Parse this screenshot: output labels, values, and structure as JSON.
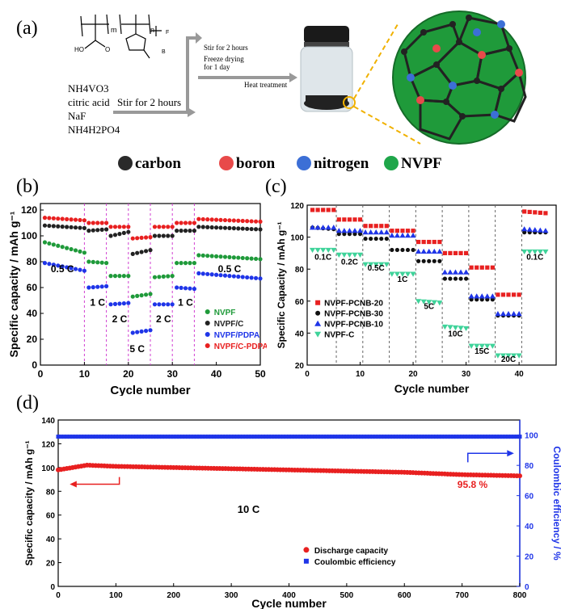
{
  "panel_labels": {
    "a": "(a)",
    "b": "(b)",
    "c": "(c)",
    "d": "(d)"
  },
  "schematic": {
    "reagents": [
      "NH4VO3",
      "citric acid",
      "NaF",
      "NH4H2PO4"
    ],
    "step1": "Stir for 2 hours",
    "step2a": "Stir for 2 hours",
    "step2b": "Freeze drying",
    "step2c": "for 1 day",
    "step3": "Heat treatment",
    "polymer_m": "m",
    "polymer_n": "n",
    "polymer_ho": "HO",
    "polymer_o": "O",
    "polymer_f": "F",
    "polymer_b": "B",
    "legend": [
      {
        "label": "carbon",
        "color": "#2a2a2a"
      },
      {
        "label": "boron",
        "color": "#e84a4a"
      },
      {
        "label": "nitrogen",
        "color": "#3c6fd6"
      },
      {
        "label": "NVPF",
        "color": "#1fa64a"
      }
    ]
  },
  "chart_data": [
    {
      "id": "b",
      "type": "scatter",
      "xlabel": "Cycle number",
      "ylabel": "Specific capacity / mAh g⁻¹",
      "xlim": [
        0,
        50
      ],
      "ylim": [
        0,
        125
      ],
      "xticks": [
        0,
        10,
        20,
        30,
        40,
        50
      ],
      "yticks": [
        0,
        20,
        40,
        60,
        80,
        100,
        120
      ],
      "dividers": [
        10,
        15,
        20,
        25,
        30,
        35
      ],
      "annotations": [
        "0.5 C",
        "1 C",
        "2 C",
        "5 C",
        "2 C",
        "1 C",
        "0.5 C"
      ],
      "series": [
        {
          "name": "NVPF",
          "color": "#1f9a3a",
          "segments": [
            [
              1,
              95,
              10,
              87
            ],
            [
              11,
              80,
              15,
              79
            ],
            [
              16,
              69,
              20,
              69
            ],
            [
              21,
              53,
              25,
              55
            ],
            [
              26,
              68,
              30,
              69
            ],
            [
              31,
              79,
              35,
              79
            ],
            [
              36,
              85,
              50,
              82
            ]
          ]
        },
        {
          "name": "NVPF/C",
          "color": "#222222",
          "segments": [
            [
              1,
              108,
              10,
              106
            ],
            [
              11,
              104,
              15,
              105
            ],
            [
              16,
              100,
              20,
              103
            ],
            [
              21,
              86,
              25,
              89
            ],
            [
              26,
              100,
              30,
              100
            ],
            [
              31,
              104,
              35,
              104
            ],
            [
              36,
              107,
              50,
              105
            ]
          ]
        },
        {
          "name": "NVPF/PDPA",
          "color": "#1f35e8",
          "segments": [
            [
              1,
              79,
              10,
              73
            ],
            [
              11,
              60,
              15,
              61
            ],
            [
              16,
              47,
              20,
              48
            ],
            [
              21,
              25,
              25,
              27
            ],
            [
              26,
              47,
              30,
              47
            ],
            [
              31,
              60,
              35,
              59
            ],
            [
              36,
              71,
              50,
              67
            ]
          ]
        },
        {
          "name": "NVPF/C-PDPA",
          "color": "#e82020",
          "segments": [
            [
              1,
              114,
              10,
              112
            ],
            [
              11,
              110,
              15,
              110
            ],
            [
              16,
              107,
              20,
              107
            ],
            [
              21,
              98,
              25,
              99
            ],
            [
              26,
              107,
              30,
              107
            ],
            [
              31,
              110,
              35,
              110
            ],
            [
              36,
              113,
              50,
              111
            ]
          ]
        }
      ]
    },
    {
      "id": "c",
      "type": "scatter",
      "xlabel": "Cycle number",
      "ylabel": "Specific Capacity / mAh g⁻¹",
      "xlim": [
        0,
        47
      ],
      "ylim": [
        20,
        120
      ],
      "xticks": [
        0,
        10,
        20,
        30,
        40
      ],
      "yticks": [
        20,
        40,
        60,
        80,
        100,
        120
      ],
      "dividers": [
        5.5,
        10.5,
        15.5,
        20.5,
        25.5,
        30.5,
        35.5,
        40.5
      ],
      "annotations": [
        "0.1C",
        "0.2C",
        "0.5C",
        "1C",
        "5C",
        "10C",
        "15C",
        "20C",
        "0.1C"
      ],
      "series": [
        {
          "name": "NVPF-PCNB-20",
          "color": "#e82020",
          "marker": "square",
          "segments": [
            [
              1,
              117,
              5,
              117
            ],
            [
              6,
              111,
              10,
              111
            ],
            [
              11,
              107,
              15,
              107
            ],
            [
              16,
              104,
              20,
              104
            ],
            [
              21,
              97,
              25,
              97
            ],
            [
              26,
              90,
              30,
              90
            ],
            [
              31,
              81,
              35,
              81
            ],
            [
              36,
              64,
              40,
              64
            ],
            [
              41,
              116,
              45,
              115
            ]
          ]
        },
        {
          "name": "NVPF-PCNB-30",
          "color": "#111111",
          "marker": "circle",
          "segments": [
            [
              1,
              106,
              5,
              105
            ],
            [
              6,
              102,
              10,
              102
            ],
            [
              11,
              99,
              15,
              99
            ],
            [
              16,
              92,
              20,
              92
            ],
            [
              21,
              85,
              25,
              85
            ],
            [
              26,
              74,
              30,
              74
            ],
            [
              31,
              61,
              35,
              61
            ],
            [
              36,
              51,
              40,
              51
            ],
            [
              41,
              103,
              45,
              103
            ]
          ]
        },
        {
          "name": "NVPF-PCNB-10",
          "color": "#1f35e8",
          "marker": "triangle",
          "segments": [
            [
              1,
              106,
              5,
              106
            ],
            [
              6,
              104,
              10,
              104
            ],
            [
              11,
              103,
              15,
              103
            ],
            [
              16,
              101,
              20,
              101
            ],
            [
              21,
              91,
              25,
              91
            ],
            [
              26,
              78,
              30,
              78
            ],
            [
              31,
              63,
              35,
              63
            ],
            [
              36,
              52,
              40,
              52
            ],
            [
              41,
              105,
              45,
              104
            ]
          ]
        },
        {
          "name": "NVPF-C",
          "color": "#3fd39a",
          "marker": "triangle-down",
          "segments": [
            [
              1,
              92,
              5,
              92
            ],
            [
              6,
              89,
              10,
              89
            ],
            [
              11,
              83,
              15,
              83
            ],
            [
              16,
              77,
              20,
              77
            ],
            [
              21,
              60,
              25,
              59
            ],
            [
              26,
              44,
              30,
              43
            ],
            [
              31,
              32,
              35,
              32
            ],
            [
              36,
              26,
              40,
              26
            ],
            [
              41,
              91,
              45,
              91
            ]
          ]
        }
      ]
    },
    {
      "id": "d",
      "type": "scatter",
      "xlabel": "Cycle number",
      "ylabel": "Specific capacity / mAh g⁻¹",
      "y2label": "Coulombic efficiency / %",
      "xlim": [
        0,
        800
      ],
      "ylim": [
        0,
        140
      ],
      "y2lim": [
        0,
        110
      ],
      "xticks": [
        0,
        100,
        200,
        300,
        400,
        500,
        600,
        700,
        800
      ],
      "yticks": [
        0,
        20,
        40,
        60,
        80,
        100,
        120,
        140
      ],
      "y2ticks": [
        0,
        20,
        40,
        60,
        80,
        100
      ],
      "annotations": [
        "10 C",
        "95.8 %"
      ],
      "series": [
        {
          "name": "Discharge capacity",
          "color": "#e82020",
          "axis": "left",
          "curve": [
            [
              0,
              98
            ],
            [
              50,
              102
            ],
            [
              100,
              101
            ],
            [
              200,
              100
            ],
            [
              300,
              99
            ],
            [
              400,
              98
            ],
            [
              500,
              97
            ],
            [
              600,
              96
            ],
            [
              700,
              94
            ],
            [
              800,
              93
            ]
          ]
        },
        {
          "name": "Coulombic efficiency",
          "color": "#1f35e8",
          "axis": "right",
          "curve": [
            [
              0,
              99
            ],
            [
              800,
              99
            ]
          ]
        }
      ]
    }
  ]
}
